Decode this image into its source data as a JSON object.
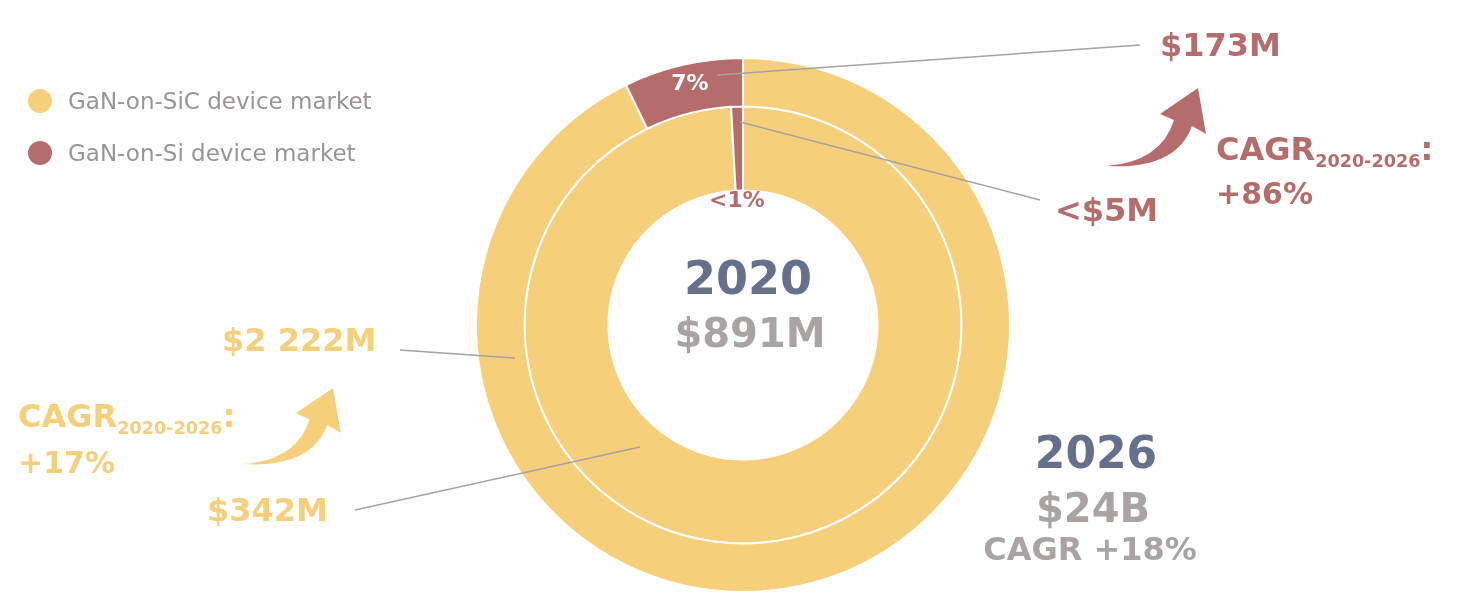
{
  "chart_data": {
    "type": "donut",
    "categories": [
      "GaN-on-SiC device market",
      "GaN-on-Si device market"
    ],
    "colors": [
      "#f5cf7a",
      "#b46d6c"
    ],
    "series": [
      {
        "name": "2020",
        "values": [
          342,
          3
        ],
        "value_labels": [
          "$342M",
          "<$5M"
        ]
      },
      {
        "name": "2026",
        "values": [
          2222,
          173
        ],
        "value_labels": [
          "$2 222M",
          "$173M"
        ]
      }
    ],
    "legend": "top left",
    "annotations": [
      "7%",
      "<1%",
      "$891M",
      "$24B",
      "CAGR +18%",
      "CAGR$_{2020-2026}$:",
      "+86%",
      "CAGR$_{2020-2026}$:",
      "+17%"
    ]
  }
}
